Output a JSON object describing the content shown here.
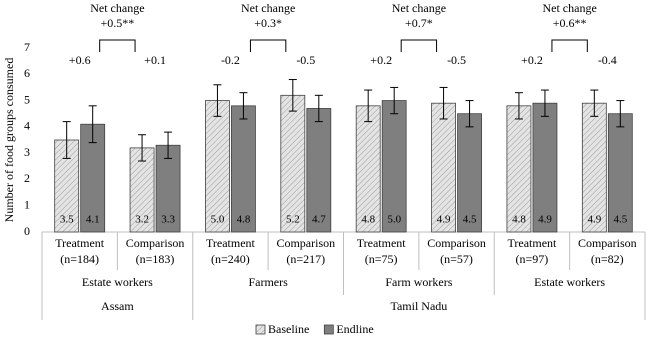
{
  "chart_data": {
    "type": "bar",
    "ylabel": "Number of food groups consumed",
    "ylim": [
      0,
      7
    ],
    "yticks": [
      0,
      1,
      2,
      3,
      4,
      5,
      6,
      7
    ],
    "categories": [
      [
        "Treatment",
        "(n=184)"
      ],
      [
        "Comparison",
        "(n=183)"
      ],
      [
        "Treatment",
        "(n=240)"
      ],
      [
        "Comparison",
        "(n=217)"
      ],
      [
        "Treatment",
        "(n=75)"
      ],
      [
        "Comparison",
        "(n=57)"
      ],
      [
        "Treatment",
        "(n=97)"
      ],
      [
        "Comparison",
        "(n=82)"
      ]
    ],
    "group_labels": [
      "Estate workers",
      null,
      "Farmers",
      null,
      "Farm workers",
      null,
      "Estate workers",
      null
    ],
    "region_labels": [
      "Assam",
      null,
      "Tamil Nadu",
      null,
      null,
      null,
      null,
      null
    ],
    "change_labels": [
      "+0.6",
      "+0.1",
      "-0.2",
      "-0.5",
      "+0.2",
      "-0.5",
      "+0.2",
      "-0.4"
    ],
    "net_change_title": "Net change",
    "net_change_labels": [
      "+0.5**",
      null,
      "+0.3*",
      null,
      "+0.7*",
      null,
      "+0.6**",
      null
    ],
    "series": [
      {
        "name": "Baseline",
        "color": "#e4e4e4",
        "hatch": true,
        "values": [
          3.5,
          3.2,
          5.0,
          5.2,
          4.8,
          4.9,
          4.8,
          4.9
        ],
        "value_labels": [
          "3.5",
          "3.2",
          "5.0",
          "5.2",
          "4.8",
          "4.9",
          "4.8",
          "4.9"
        ],
        "errors": [
          0.7,
          0.5,
          0.6,
          0.6,
          0.6,
          0.6,
          0.5,
          0.5
        ]
      },
      {
        "name": "Endline",
        "color": "#7f7f7f",
        "hatch": false,
        "values": [
          4.1,
          3.3,
          4.8,
          4.7,
          5.0,
          4.5,
          4.9,
          4.5
        ],
        "value_labels": [
          "4.1",
          "3.3",
          "4.8",
          "4.7",
          "5.0",
          "4.5",
          "4.9",
          "4.5"
        ],
        "errors": [
          0.7,
          0.5,
          0.5,
          0.5,
          0.5,
          0.5,
          0.5,
          0.5
        ]
      }
    ],
    "legend": "bottom"
  }
}
